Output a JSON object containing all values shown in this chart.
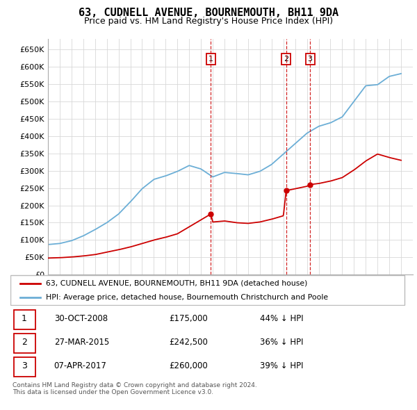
{
  "title": "63, CUDNELL AVENUE, BOURNEMOUTH, BH11 9DA",
  "subtitle": "Price paid vs. HM Land Registry's House Price Index (HPI)",
  "ytick_values": [
    0,
    50000,
    100000,
    150000,
    200000,
    250000,
    300000,
    350000,
    400000,
    450000,
    500000,
    550000,
    600000,
    650000
  ],
  "hpi_color": "#6baed6",
  "price_color": "#cc0000",
  "vline_color": "#cc0000",
  "transactions": [
    {
      "date": 2008.83,
      "price": 175000,
      "label": "1"
    },
    {
      "date": 2015.24,
      "price": 242500,
      "label": "2"
    },
    {
      "date": 2017.27,
      "price": 260000,
      "label": "3"
    }
  ],
  "legend_entries": [
    "63, CUDNELL AVENUE, BOURNEMOUTH, BH11 9DA (detached house)",
    "HPI: Average price, detached house, Bournemouth Christchurch and Poole"
  ],
  "table_rows": [
    {
      "num": "1",
      "date": "30-OCT-2008",
      "price": "£175,000",
      "hpi": "44% ↓ HPI"
    },
    {
      "num": "2",
      "date": "27-MAR-2015",
      "price": "£242,500",
      "hpi": "36% ↓ HPI"
    },
    {
      "num": "3",
      "date": "07-APR-2017",
      "price": "£260,000",
      "hpi": "39% ↓ HPI"
    }
  ],
  "footnote": "Contains HM Land Registry data © Crown copyright and database right 2024.\nThis data is licensed under the Open Government Licence v3.0.",
  "xmin": 1995,
  "xmax": 2026,
  "ymin": 0,
  "ymax": 680000
}
